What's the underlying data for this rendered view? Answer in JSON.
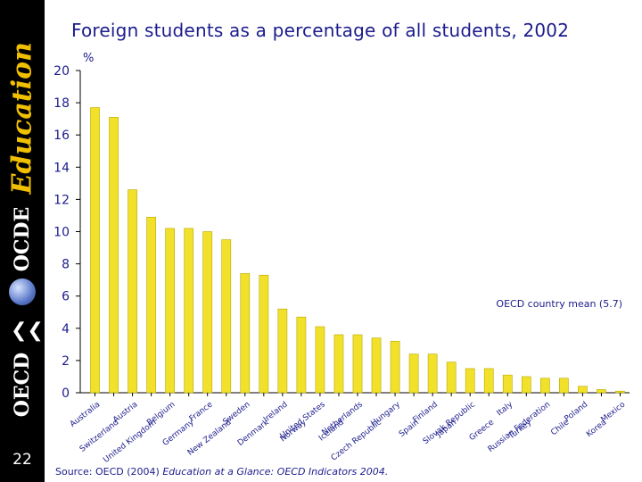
{
  "title": "Foreign students as a percentage of all students, 2002",
  "source_prefix": "Source: OECD (2004) ",
  "source_title": "Education at a Glance: OECD Indicators 2004.",
  "page_number": "22",
  "sidebar": {
    "brand_education": "Education",
    "brand_ocde": "OCDE",
    "brand_oecd": "OECD"
  },
  "colors": {
    "bar": "#f2e12a",
    "bar_edge": "#b8a800",
    "text": "#1c1c8c",
    "axis": "#000000",
    "sidebar": "#000000",
    "accent": "#c8a000"
  },
  "chart_data": {
    "type": "bar",
    "title": "Foreign students as a percentage of all students, 2002",
    "ylabel": "%",
    "xlabel": "",
    "ylim": [
      0,
      20
    ],
    "yticks": [
      0,
      2,
      4,
      6,
      8,
      10,
      12,
      14,
      16,
      18,
      20
    ],
    "grid": false,
    "categories": [
      "Australia",
      "Switzerland",
      "Austria",
      "United Kingdom",
      "Belgium",
      "Germany",
      "France",
      "New Zealand",
      "Sweden",
      "Denmark",
      "Ireland",
      "Norway",
      "United States",
      "Iceland",
      "Netherlands",
      "Czech Republic",
      "Hungary",
      "Spain",
      "Finland",
      "Japan",
      "Slovak Republic",
      "Greece",
      "Italy",
      "Turkey",
      "Russian Federation",
      "Chile",
      "Poland",
      "Korea",
      "Mexico"
    ],
    "values": [
      17.7,
      17.1,
      12.6,
      10.9,
      10.2,
      10.2,
      10.0,
      9.5,
      7.4,
      7.3,
      5.2,
      4.7,
      4.1,
      3.6,
      3.6,
      3.4,
      3.2,
      2.4,
      2.4,
      1.9,
      1.5,
      1.5,
      1.1,
      1.0,
      0.9,
      0.9,
      0.4,
      0.2,
      0.1
    ],
    "reference_line": {
      "label": "OECD country mean (5.7)",
      "value": 5.7
    }
  }
}
